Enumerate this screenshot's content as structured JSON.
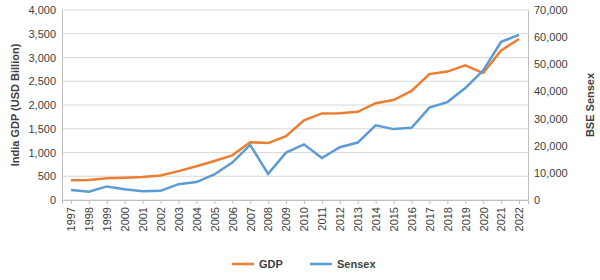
{
  "chart_data": {
    "type": "line",
    "y_label": "India GDP (USD Billion)",
    "y2_label": "BSE Sensex",
    "categories": [
      "1997",
      "1998",
      "1999",
      "2000",
      "2001",
      "2002",
      "2003",
      "2004",
      "2005",
      "2006",
      "2007",
      "2008",
      "2009",
      "2010",
      "2011",
      "2012",
      "2013",
      "2014",
      "2015",
      "2016",
      "2017",
      "2018",
      "2019",
      "2020",
      "2021",
      "2022"
    ],
    "series": [
      {
        "name": "GDP",
        "color": "#ED7D31",
        "values": [
          415,
          421,
          458,
          468,
          485,
          515,
          608,
          709,
          820,
          940,
          1217,
          1199,
          1342,
          1676,
          1823,
          1828,
          1857,
          2039,
          2104,
          2295,
          2651,
          2703,
          2836,
          2672,
          3150,
          3390
        ]
      },
      {
        "name": "Sensex",
        "color": "#5B9BD5",
        "axis": "y2",
        "values": [
          3659,
          3055,
          5005,
          3972,
          3262,
          3377,
          5839,
          6603,
          9398,
          13787,
          20287,
          9647,
          17465,
          20509,
          15455,
          19427,
          21171,
          27499,
          26118,
          26626,
          34057,
          36068,
          41254,
          47751,
          58254,
          60841
        ]
      }
    ],
    "ylim": [
      0,
      4000
    ],
    "yticks": [
      0,
      500,
      {
        "value": 1000,
        "label": "1,000"
      },
      {
        "value": 1500,
        "label": "1,500"
      },
      {
        "value": 2000,
        "label": "2,000"
      },
      {
        "value": 2500,
        "label": "2,500"
      },
      {
        "value": 3000,
        "label": "3,000"
      },
      {
        "value": 3500,
        "label": "3,500"
      },
      {
        "value": 4000,
        "label": "4,000"
      }
    ],
    "y2lim": [
      0,
      70000
    ],
    "y2ticks": [
      0,
      {
        "value": 10000,
        "label": "10,000"
      },
      {
        "value": 20000,
        "label": "20,000"
      },
      {
        "value": 30000,
        "label": "30,000"
      },
      {
        "value": 40000,
        "label": "40,000"
      },
      {
        "value": 50000,
        "label": "50,000"
      },
      {
        "value": 60000,
        "label": "60,000"
      },
      {
        "value": 70000,
        "label": "70,000"
      }
    ],
    "grid": true,
    "legend": "bottom"
  }
}
